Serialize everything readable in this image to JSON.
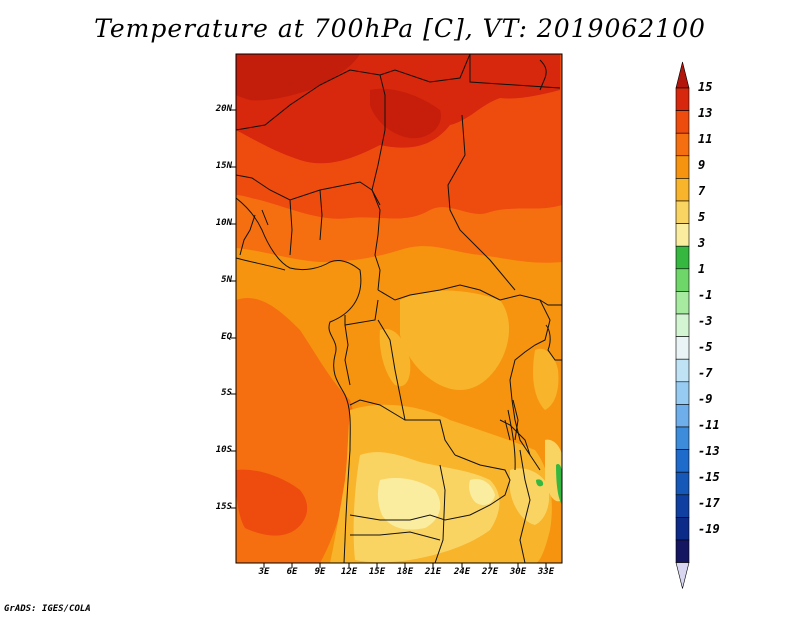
{
  "title": "Temperature at 700hPa [C], VT: 2019062100",
  "credit": "GrADS: IGES/COLA",
  "map": {
    "variable": "Temperature at 700hPa",
    "units": "C",
    "valid_time": "2019062100",
    "region": "Central and Southern Africa",
    "y_ticks": [
      "20N",
      "15N",
      "10N",
      "5N",
      "EQ",
      "5S",
      "10S",
      "15S"
    ],
    "x_ticks": [
      "3E",
      "6E",
      "9E",
      "12E",
      "15E",
      "18E",
      "21E",
      "24E",
      "27E",
      "30E",
      "33E"
    ]
  },
  "colorbar": {
    "labels": [
      "15",
      "13",
      "11",
      "9",
      "7",
      "5",
      "3",
      "1",
      "-1",
      "-3",
      "-5",
      "-7",
      "-9",
      "-11",
      "-13",
      "-15",
      "-17",
      "-19"
    ],
    "colors": [
      "#b2150b",
      "#d7270c",
      "#ee4b0f",
      "#f56f10",
      "#f6940f",
      "#f8b42b",
      "#fad463",
      "#fbeda0",
      "#36b840",
      "#6fd66a",
      "#a6eba0",
      "#d4f5d2",
      "#eaf4f6",
      "#bfe2f5",
      "#98cbf1",
      "#6eaeea",
      "#3d8cdc",
      "#1e6bcb",
      "#1558b7",
      "#0f3fa0",
      "#0c2a88",
      "#141662",
      "#d8d6f0"
    ]
  }
}
